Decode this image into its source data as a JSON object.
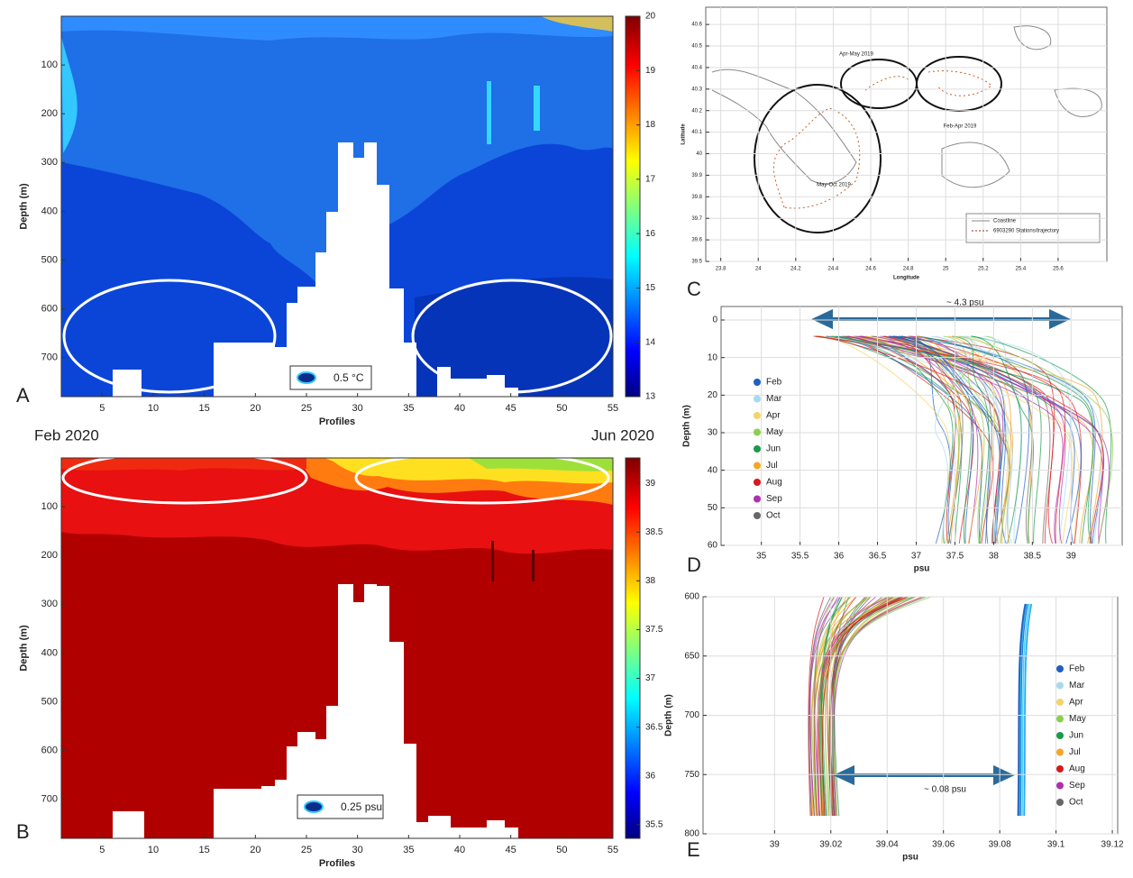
{
  "chart_data": [
    {
      "type": "contour",
      "panel": "A",
      "xlabel": "Profiles",
      "ylabel": "Depth (m)",
      "xlim": [
        1,
        55
      ],
      "xticks": [
        5,
        10,
        15,
        20,
        25,
        30,
        35,
        40,
        45,
        50,
        55
      ],
      "ylim": [
        0,
        780
      ],
      "yticks": [
        100,
        200,
        300,
        400,
        500,
        600,
        700
      ],
      "yreverse": true,
      "clim": [
        13,
        20
      ],
      "cticks": [
        13,
        14,
        15,
        16,
        17,
        18,
        19,
        20
      ],
      "annotations": [
        "0.5 °C",
        "Feb 2020",
        "Jun 2020"
      ]
    },
    {
      "type": "contour",
      "panel": "B",
      "xlabel": "Profiles",
      "ylabel": "Depth (m)",
      "xlim": [
        1,
        55
      ],
      "xticks": [
        5,
        10,
        15,
        20,
        25,
        30,
        35,
        40,
        45,
        50,
        55
      ],
      "ylim": [
        0,
        780
      ],
      "yticks": [
        100,
        200,
        300,
        400,
        500,
        600,
        700
      ],
      "yreverse": true,
      "clim": [
        35.36,
        39.26
      ],
      "cticks": [
        35.5,
        36,
        36.5,
        37,
        37.5,
        38,
        38.5,
        39
      ],
      "annotations": [
        "0.25 psu"
      ]
    },
    {
      "type": "map",
      "panel": "C",
      "xlabel": "Longitude",
      "ylabel": "Latitude",
      "xlim": [
        23.72,
        25.86
      ],
      "xticks": [
        23.8,
        24,
        24.2,
        24.4,
        24.6,
        24.8,
        25,
        25.2,
        25.4,
        25.6
      ],
      "ylim": [
        39.5,
        40.68
      ],
      "yticks": [
        39.5,
        39.6,
        39.7,
        39.8,
        39.9,
        40,
        40.1,
        40.2,
        40.3,
        40.4,
        40.5,
        40.6
      ],
      "grid": true,
      "annotations": [
        "Apr-May 2019",
        "Feb-Apr 2019",
        "May-Oct 2019"
      ],
      "legend_entries": [
        {
          "name": "Coastline",
          "color": "#8a8a8a"
        },
        {
          "name": "6903290 Stations/trajectory",
          "color": "#8b3a1a"
        }
      ]
    },
    {
      "type": "line",
      "panel": "D",
      "xlabel": "psu",
      "ylabel": "Depth (m)",
      "xlim": [
        34.48,
        39.66
      ],
      "xticks": [
        35,
        35.5,
        36,
        36.5,
        37,
        37.5,
        38,
        38.5,
        39
      ],
      "ylim": [
        -3.6,
        60
      ],
      "yticks": [
        0,
        10,
        20,
        30,
        40,
        50,
        60
      ],
      "yreverse": true,
      "grid": true,
      "annotations": [
        "~ 4.3 psu"
      ],
      "legend_entries": [
        {
          "name": "Feb",
          "color": "#1f5fbf"
        },
        {
          "name": "Mar",
          "color": "#a8d8f0"
        },
        {
          "name": "Apr",
          "color": "#f5d36b"
        },
        {
          "name": "May",
          "color": "#8ccf4f"
        },
        {
          "name": "Jun",
          "color": "#1a9a4a"
        },
        {
          "name": "Jul",
          "color": "#f5a623"
        },
        {
          "name": "Aug",
          "color": "#d7191c"
        },
        {
          "name": "Sep",
          "color": "#b02fb0"
        },
        {
          "name": "Oct",
          "color": "#666666"
        }
      ]
    },
    {
      "type": "line",
      "panel": "E",
      "xlabel": "psu",
      "ylabel": "Depth (m)",
      "xlim": [
        38.9746,
        39.1219
      ],
      "xticks": [
        39,
        39.02,
        39.04,
        39.06,
        39.08,
        39.1,
        39.12
      ],
      "ylim": [
        600,
        800
      ],
      "yticks": [
        600,
        650,
        700,
        750,
        800
      ],
      "yreverse": true,
      "grid": true,
      "annotations": [
        "~ 0.08 psu"
      ],
      "legend_entries": [
        {
          "name": "Feb",
          "color": "#1f5fbf"
        },
        {
          "name": "Mar",
          "color": "#a8d8f0"
        },
        {
          "name": "Apr",
          "color": "#f5d36b"
        },
        {
          "name": "May",
          "color": "#8ccf4f"
        },
        {
          "name": "Jun",
          "color": "#1a9a4a"
        },
        {
          "name": "Jul",
          "color": "#f5a623"
        },
        {
          "name": "Aug",
          "color": "#d7191c"
        },
        {
          "name": "Sep",
          "color": "#b02fb0"
        },
        {
          "name": "Oct",
          "color": "#666666"
        }
      ]
    }
  ]
}
